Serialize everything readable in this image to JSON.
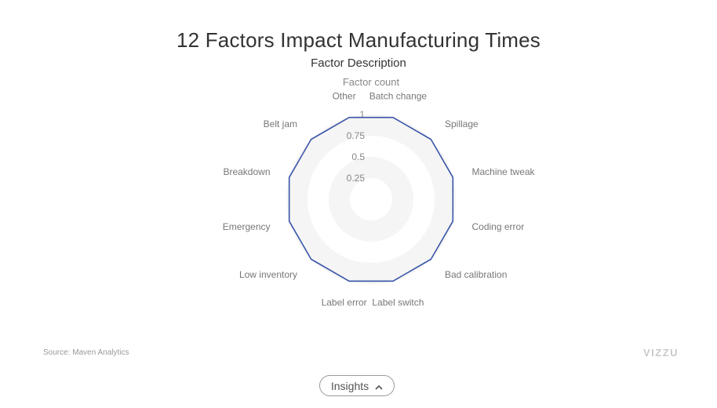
{
  "chart_data": {
    "type": "radar",
    "title": "12 Factors Impact Manufacturing Times",
    "subtitle": "Factor Description",
    "axis_title": "Factor count",
    "categories": [
      "Batch change",
      "Spillage",
      "Machine tweak",
      "Coding error",
      "Bad calibration",
      "Label switch",
      "Label error",
      "Low inventory",
      "Emergency",
      "Breakdown",
      "Belt jam",
      "Other"
    ],
    "series": [
      {
        "values": [
          1,
          1,
          1,
          1,
          1,
          1,
          1,
          1,
          1,
          1,
          1,
          1
        ],
        "color": "#3a56a8"
      }
    ],
    "radial_ticks": [
      "0.25",
      "0.5",
      "0.75",
      "1"
    ],
    "radial_range": [
      0,
      1
    ]
  },
  "footer": {
    "source": "Source: Maven Analytics",
    "logo": "VIZZU"
  },
  "insights_button": {
    "label": "Insights",
    "icon": "chevron-up-icon"
  }
}
